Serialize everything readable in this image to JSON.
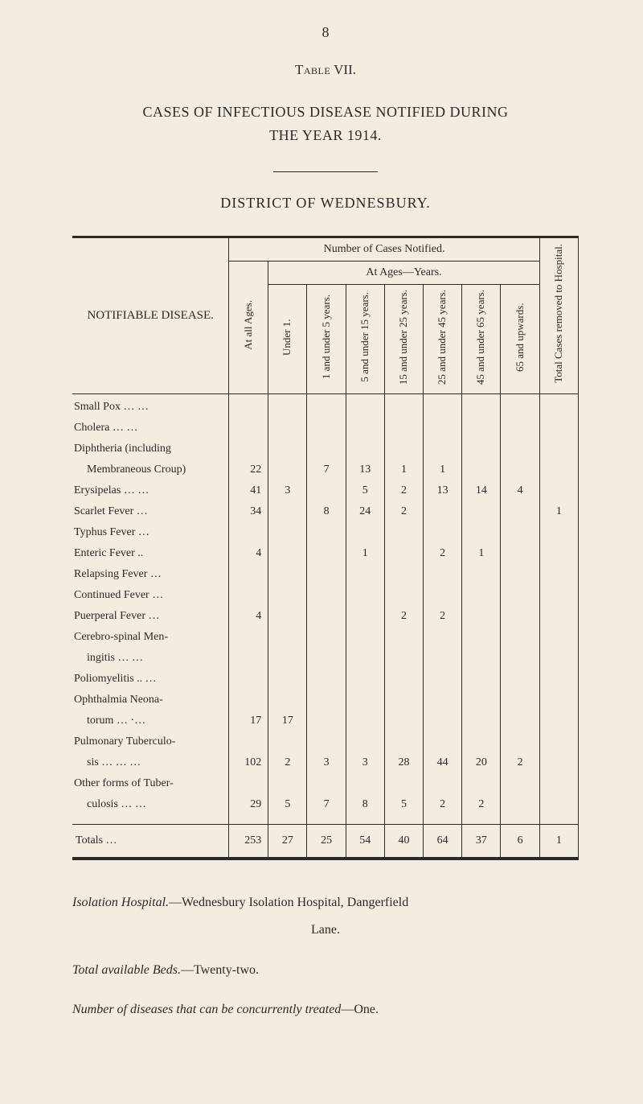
{
  "page_number": "8",
  "table_label_prefix": "Table",
  "table_label_num": "VII.",
  "title_line1": "CASES OF INFECTIOUS DISEASE NOTIFIED DURING",
  "title_line2": "THE YEAR 1914.",
  "district": "DISTRICT OF WEDNESBURY.",
  "head": {
    "disease": "NOTIFIABLE DISEASE.",
    "number_notified": "Number of Cases Notified.",
    "at_all_ages": "At all Ages.",
    "at_ages_years": "At Ages—Years.",
    "under1": "Under 1.",
    "b1_5": "1 and under 5 years.",
    "b5_15": "5 and under 15 years.",
    "b15_25": "15 and under 25 years.",
    "b25_45": "25 and under 45 years.",
    "b45_65": "45 and under 65 years.",
    "b65_up": "65 and upwards.",
    "removed": "Total Cases removed to Hospital."
  },
  "rows": [
    {
      "label": "Small Pox    …      …",
      "indent": false,
      "all": "",
      "u1": "",
      "b1": "",
      "b5": "",
      "b15": "",
      "b25": "",
      "b45": "",
      "b65": "",
      "rem": ""
    },
    {
      "label": "Cholera        …      …",
      "indent": false,
      "all": "",
      "u1": "",
      "b1": "",
      "b5": "",
      "b15": "",
      "b25": "",
      "b45": "",
      "b65": "",
      "rem": ""
    },
    {
      "label": "Diphtheria  (including",
      "indent": false,
      "all": "",
      "u1": "",
      "b1": "",
      "b5": "",
      "b15": "",
      "b25": "",
      "b45": "",
      "b65": "",
      "rem": ""
    },
    {
      "label": "Membraneous Croup)",
      "indent": true,
      "all": "22",
      "u1": "",
      "b1": "7",
      "b5": "13",
      "b15": "1",
      "b25": "1",
      "b45": "",
      "b65": "",
      "rem": ""
    },
    {
      "label": "Erysipelas     …      …",
      "indent": false,
      "all": "41",
      "u1": "3",
      "b1": "",
      "b5": "5",
      "b15": "2",
      "b25": "13",
      "b45": "14",
      "b65": "4",
      "rem": ""
    },
    {
      "label": "Scarlet Fever        …",
      "indent": false,
      "all": "34",
      "u1": "",
      "b1": "8",
      "b5": "24",
      "b15": "2",
      "b25": "",
      "b45": "",
      "b65": "",
      "rem": "1"
    },
    {
      "label": "Typhus Fever        …",
      "indent": false,
      "all": "",
      "u1": "",
      "b1": "",
      "b5": "",
      "b15": "",
      "b25": "",
      "b45": "",
      "b65": "",
      "rem": ""
    },
    {
      "label": "Enteric Fever        ..",
      "indent": false,
      "all": "4",
      "u1": "",
      "b1": "",
      "b5": "1",
      "b15": "",
      "b25": "2",
      "b45": "1",
      "b65": "",
      "rem": ""
    },
    {
      "label": "Relapsing Fever    …",
      "indent": false,
      "all": "",
      "u1": "",
      "b1": "",
      "b5": "",
      "b15": "",
      "b25": "",
      "b45": "",
      "b65": "",
      "rem": ""
    },
    {
      "label": "Continued Fever   …",
      "indent": false,
      "all": "",
      "u1": "",
      "b1": "",
      "b5": "",
      "b15": "",
      "b25": "",
      "b45": "",
      "b65": "",
      "rem": ""
    },
    {
      "label": "Puerperal Fever    …",
      "indent": false,
      "all": "4",
      "u1": "",
      "b1": "",
      "b5": "",
      "b15": "2",
      "b25": "2",
      "b45": "",
      "b65": "",
      "rem": ""
    },
    {
      "label": "Cerebro-spinal   Men-",
      "indent": false,
      "all": "",
      "u1": "",
      "b1": "",
      "b5": "",
      "b15": "",
      "b25": "",
      "b45": "",
      "b65": "",
      "rem": ""
    },
    {
      "label": "ingitis       …      …",
      "indent": true,
      "all": "",
      "u1": "",
      "b1": "",
      "b5": "",
      "b15": "",
      "b25": "",
      "b45": "",
      "b65": "",
      "rem": ""
    },
    {
      "label": "Poliomyelitis ..      …",
      "indent": false,
      "all": "",
      "u1": "",
      "b1": "",
      "b5": "",
      "b15": "",
      "b25": "",
      "b45": "",
      "b65": "",
      "rem": ""
    },
    {
      "label": "Ophthalmia Neona-",
      "indent": false,
      "all": "",
      "u1": "",
      "b1": "",
      "b5": "",
      "b15": "",
      "b25": "",
      "b45": "",
      "b65": "",
      "rem": ""
    },
    {
      "label": "torum        …    ·…",
      "indent": true,
      "all": "17",
      "u1": "17",
      "b1": "",
      "b5": "",
      "b15": "",
      "b25": "",
      "b45": "",
      "b65": "",
      "rem": ""
    },
    {
      "label": "Pulmonary Tuberculo-",
      "indent": false,
      "all": "",
      "u1": "",
      "b1": "",
      "b5": "",
      "b15": "",
      "b25": "",
      "b45": "",
      "b65": "",
      "rem": ""
    },
    {
      "label": "sis  …      …      …",
      "indent": true,
      "all": "102",
      "u1": "2",
      "b1": "3",
      "b5": "3",
      "b15": "28",
      "b25": "44",
      "b45": "20",
      "b65": "2",
      "rem": ""
    },
    {
      "label": "Other forms of Tuber-",
      "indent": false,
      "all": "",
      "u1": "",
      "b1": "",
      "b5": "",
      "b15": "",
      "b25": "",
      "b45": "",
      "b65": "",
      "rem": ""
    },
    {
      "label": "culosis      …      …",
      "indent": true,
      "all": "29",
      "u1": "5",
      "b1": "7",
      "b5": "8",
      "b15": "5",
      "b25": "2",
      "b45": "2",
      "b65": "",
      "rem": ""
    }
  ],
  "totals": {
    "label": "Totals          …",
    "all": "253",
    "u1": "27",
    "b1": "25",
    "b5": "54",
    "b15": "40",
    "b25": "64",
    "b45": "37",
    "b65": "6",
    "rem": "1"
  },
  "post": {
    "p1a": "Isolation Hospital.",
    "p1b": "—Wednesbury Isolation Hospital, Dangerfield",
    "p1c": "Lane.",
    "p2a": "Total available Beds.",
    "p2b": "—Twenty-two.",
    "p3a": "Number of diseases that can be concurrently treated",
    "p3b": "—One."
  }
}
